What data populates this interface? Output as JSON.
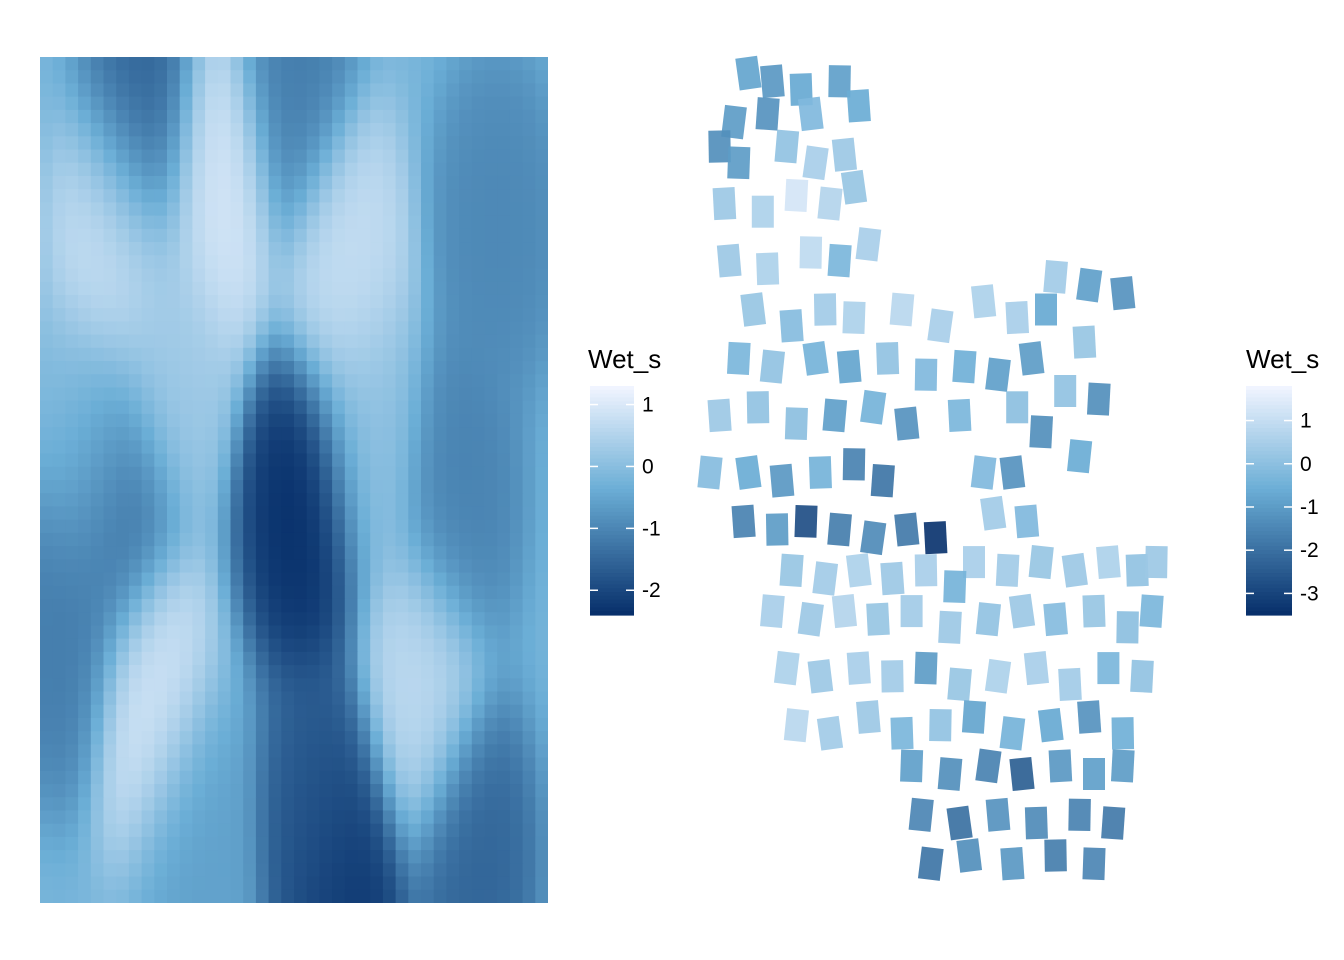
{
  "chart_data": [
    {
      "type": "heatmap",
      "title": "",
      "xlabel": "",
      "ylabel": "",
      "grid": false,
      "legend": {
        "title": "Wet_s",
        "placement": "right",
        "ticks": [
          1,
          0,
          -1,
          -2
        ],
        "range": [
          -2.4,
          1.3
        ]
      },
      "colors": {
        "low": "#08306b",
        "mid": "#6baed6",
        "high": "#f0f4ff"
      },
      "field_blobs": [
        {
          "cx": 0.15,
          "cy": 0.22,
          "v": 1.1
        },
        {
          "cx": 0.35,
          "cy": 0.15,
          "v": 1.2
        },
        {
          "cx": 0.6,
          "cy": 0.25,
          "v": 1.0
        },
        {
          "cx": 0.25,
          "cy": 0.36,
          "v": 0.5
        },
        {
          "cx": 0.2,
          "cy": 0.07,
          "v": -1.5
        },
        {
          "cx": 0.5,
          "cy": 0.03,
          "v": -1.0
        },
        {
          "cx": 0.9,
          "cy": 0.2,
          "v": -0.8
        },
        {
          "cx": 0.52,
          "cy": 0.54,
          "v": -2.3
        },
        {
          "cx": 0.15,
          "cy": 0.53,
          "v": -1.4
        },
        {
          "cx": 0.82,
          "cy": 0.52,
          "v": -0.9
        },
        {
          "cx": 0.1,
          "cy": 0.46,
          "v": 0.2
        },
        {
          "cx": 0.65,
          "cy": 0.45,
          "v": 0.3
        },
        {
          "cx": 0.22,
          "cy": 0.76,
          "v": 1.2
        },
        {
          "cx": 0.75,
          "cy": 0.75,
          "v": 0.9
        },
        {
          "cx": 0.05,
          "cy": 0.67,
          "v": -1.0
        },
        {
          "cx": 0.55,
          "cy": 0.9,
          "v": -1.6
        },
        {
          "cx": 0.85,
          "cy": 0.95,
          "v": -1.4
        },
        {
          "cx": 0.6,
          "cy": 0.99,
          "v": -2.2
        },
        {
          "cx": 0.3,
          "cy": 0.92,
          "v": -0.4
        }
      ]
    },
    {
      "type": "scatter",
      "title": "",
      "xlabel": "",
      "ylabel": "",
      "grid": false,
      "legend": {
        "title": "Wet_s",
        "placement": "right",
        "ticks": [
          1,
          0,
          -1,
          -2,
          -3
        ],
        "range": [
          -3.5,
          1.8
        ]
      },
      "colors": {
        "low": "#08306b",
        "mid": "#6baed6",
        "high": "#f0f4ff"
      },
      "points": [
        [
          0.08,
          0.01,
          -0.8
        ],
        [
          0.13,
          0.02,
          -1.1
        ],
        [
          0.19,
          0.03,
          -0.7
        ],
        [
          0.27,
          0.02,
          -0.9
        ],
        [
          0.12,
          0.06,
          -1.2
        ],
        [
          0.05,
          0.07,
          -1.0
        ],
        [
          0.21,
          0.06,
          -0.2
        ],
        [
          0.31,
          0.05,
          -0.6
        ],
        [
          0.02,
          0.1,
          -1.3
        ],
        [
          0.06,
          0.12,
          -1.0
        ],
        [
          0.16,
          0.1,
          0.1
        ],
        [
          0.22,
          0.12,
          0.5
        ],
        [
          0.28,
          0.11,
          0.3
        ],
        [
          0.03,
          0.17,
          0.3
        ],
        [
          0.11,
          0.18,
          0.6
        ],
        [
          0.18,
          0.16,
          1.3
        ],
        [
          0.25,
          0.17,
          0.7
        ],
        [
          0.3,
          0.15,
          0.2
        ],
        [
          0.04,
          0.24,
          0.3
        ],
        [
          0.12,
          0.25,
          0.6
        ],
        [
          0.21,
          0.23,
          0.9
        ],
        [
          0.27,
          0.24,
          -0.3
        ],
        [
          0.33,
          0.22,
          0.5
        ],
        [
          0.09,
          0.3,
          0.2
        ],
        [
          0.17,
          0.32,
          -0.1
        ],
        [
          0.24,
          0.3,
          0.4
        ],
        [
          0.3,
          0.31,
          0.6
        ],
        [
          0.4,
          0.3,
          0.8
        ],
        [
          0.48,
          0.32,
          0.5
        ],
        [
          0.57,
          0.29,
          0.6
        ],
        [
          0.64,
          0.31,
          0.5
        ],
        [
          0.7,
          0.3,
          -0.7
        ],
        [
          0.06,
          0.36,
          -0.3
        ],
        [
          0.13,
          0.37,
          0.1
        ],
        [
          0.22,
          0.36,
          -0.4
        ],
        [
          0.29,
          0.37,
          -0.8
        ],
        [
          0.37,
          0.36,
          0.1
        ],
        [
          0.45,
          0.38,
          -0.2
        ],
        [
          0.53,
          0.37,
          -0.5
        ],
        [
          0.6,
          0.38,
          -0.9
        ],
        [
          0.67,
          0.36,
          -1.0
        ],
        [
          0.02,
          0.43,
          0.3
        ],
        [
          0.1,
          0.42,
          0.1
        ],
        [
          0.18,
          0.44,
          0.0
        ],
        [
          0.26,
          0.43,
          -0.9
        ],
        [
          0.34,
          0.42,
          -0.4
        ],
        [
          0.41,
          0.44,
          -1.2
        ],
        [
          0.52,
          0.43,
          -0.3
        ],
        [
          0.64,
          0.42,
          0.0
        ],
        [
          0.69,
          0.45,
          -1.3
        ],
        [
          0.0,
          0.5,
          -0.1
        ],
        [
          0.08,
          0.5,
          -0.6
        ],
        [
          0.15,
          0.51,
          -1.1
        ],
        [
          0.23,
          0.5,
          -0.4
        ],
        [
          0.3,
          0.49,
          -1.6
        ],
        [
          0.36,
          0.51,
          -1.9
        ],
        [
          0.57,
          0.5,
          -0.2
        ],
        [
          0.63,
          0.5,
          -1.2
        ],
        [
          0.07,
          0.56,
          -1.6
        ],
        [
          0.14,
          0.57,
          -1.0
        ],
        [
          0.2,
          0.56,
          -2.8
        ],
        [
          0.27,
          0.57,
          -1.7
        ],
        [
          0.34,
          0.58,
          -1.4
        ],
        [
          0.41,
          0.57,
          -1.8
        ],
        [
          0.47,
          0.58,
          -3.4
        ],
        [
          0.55,
          0.61,
          0.5
        ],
        [
          0.62,
          0.62,
          0.4
        ],
        [
          0.69,
          0.61,
          0.2
        ],
        [
          0.76,
          0.62,
          0.3
        ],
        [
          0.83,
          0.61,
          0.6
        ],
        [
          0.89,
          0.62,
          0.1
        ],
        [
          0.93,
          0.61,
          0.3
        ],
        [
          0.17,
          0.62,
          0.2
        ],
        [
          0.24,
          0.63,
          0.4
        ],
        [
          0.31,
          0.62,
          0.6
        ],
        [
          0.38,
          0.63,
          0.3
        ],
        [
          0.45,
          0.62,
          0.5
        ],
        [
          0.51,
          0.64,
          -0.4
        ],
        [
          0.13,
          0.67,
          0.5
        ],
        [
          0.21,
          0.68,
          0.3
        ],
        [
          0.28,
          0.67,
          0.7
        ],
        [
          0.35,
          0.68,
          0.2
        ],
        [
          0.42,
          0.67,
          0.4
        ],
        [
          0.5,
          0.69,
          0.3
        ],
        [
          0.58,
          0.68,
          0.1
        ],
        [
          0.65,
          0.67,
          0.3
        ],
        [
          0.72,
          0.68,
          -0.1
        ],
        [
          0.8,
          0.67,
          0.2
        ],
        [
          0.87,
          0.69,
          0.0
        ],
        [
          0.92,
          0.67,
          -0.3
        ],
        [
          0.16,
          0.74,
          0.6
        ],
        [
          0.23,
          0.75,
          0.3
        ],
        [
          0.31,
          0.74,
          0.5
        ],
        [
          0.38,
          0.75,
          0.4
        ],
        [
          0.45,
          0.74,
          -1.0
        ],
        [
          0.52,
          0.76,
          0.2
        ],
        [
          0.6,
          0.75,
          0.6
        ],
        [
          0.68,
          0.74,
          0.5
        ],
        [
          0.75,
          0.76,
          0.4
        ],
        [
          0.83,
          0.74,
          -0.3
        ],
        [
          0.9,
          0.75,
          0.1
        ],
        [
          0.18,
          0.81,
          0.8
        ],
        [
          0.25,
          0.82,
          0.4
        ],
        [
          0.33,
          0.8,
          0.3
        ],
        [
          0.4,
          0.82,
          -0.3
        ],
        [
          0.48,
          0.81,
          0.1
        ],
        [
          0.55,
          0.8,
          -0.8
        ],
        [
          0.63,
          0.82,
          -0.4
        ],
        [
          0.71,
          0.81,
          -0.7
        ],
        [
          0.79,
          0.8,
          -1.2
        ],
        [
          0.86,
          0.82,
          -0.5
        ],
        [
          0.42,
          0.86,
          -0.9
        ],
        [
          0.5,
          0.87,
          -1.3
        ],
        [
          0.58,
          0.86,
          -1.6
        ],
        [
          0.65,
          0.87,
          -2.4
        ],
        [
          0.73,
          0.86,
          -1.1
        ],
        [
          0.8,
          0.87,
          -0.9
        ],
        [
          0.86,
          0.86,
          -1.0
        ],
        [
          0.44,
          0.92,
          -1.5
        ],
        [
          0.52,
          0.93,
          -2.0
        ],
        [
          0.6,
          0.92,
          -1.2
        ],
        [
          0.68,
          0.93,
          -1.4
        ],
        [
          0.77,
          0.92,
          -1.6
        ],
        [
          0.84,
          0.93,
          -1.8
        ],
        [
          0.46,
          0.98,
          -1.9
        ],
        [
          0.54,
          0.97,
          -1.3
        ],
        [
          0.63,
          0.98,
          -1.1
        ],
        [
          0.72,
          0.97,
          -1.7
        ],
        [
          0.8,
          0.98,
          -1.5
        ],
        [
          0.72,
          0.26,
          0.4
        ],
        [
          0.79,
          0.27,
          -0.9
        ],
        [
          0.86,
          0.28,
          -1.2
        ],
        [
          0.78,
          0.34,
          0.2
        ],
        [
          0.74,
          0.4,
          0.1
        ],
        [
          0.81,
          0.41,
          -1.3
        ],
        [
          0.77,
          0.48,
          -0.6
        ],
        [
          0.59,
          0.55,
          0.4
        ],
        [
          0.66,
          0.56,
          -0.2
        ]
      ]
    }
  ]
}
